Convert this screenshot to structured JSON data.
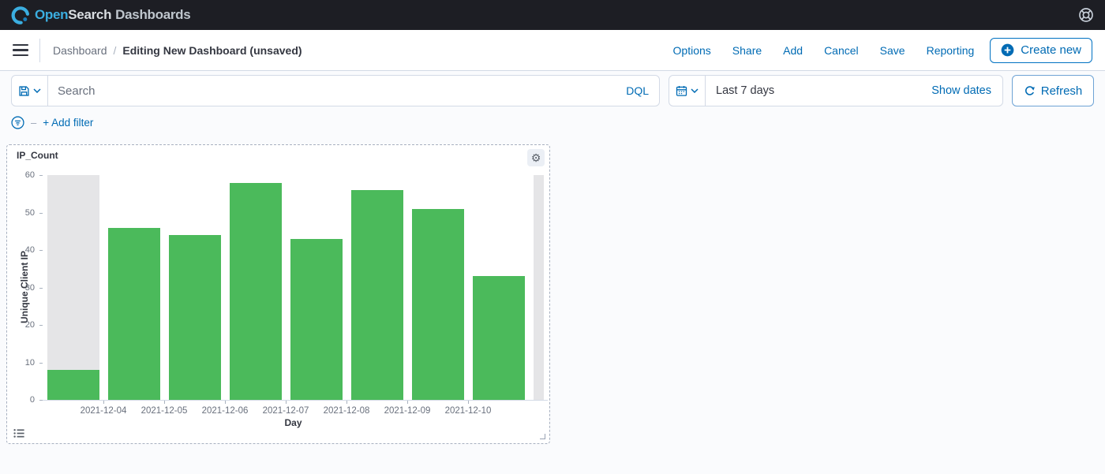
{
  "header": {
    "logo_open": "Open",
    "logo_search": "Search",
    "logo_product": "Dashboards"
  },
  "nav": {
    "breadcrumb_root": "Dashboard",
    "breadcrumb_sep": "/",
    "breadcrumb_current": "Editing New Dashboard (unsaved)",
    "actions": [
      "Options",
      "Share",
      "Add",
      "Cancel",
      "Save",
      "Reporting"
    ],
    "create_new_label": "Create new"
  },
  "query_bar": {
    "search_placeholder": "Search",
    "language_label": "DQL",
    "date_range_label": "Last 7 days",
    "show_dates_label": "Show dates",
    "refresh_label": "Refresh"
  },
  "filter_bar": {
    "dash": "–",
    "add_filter_label": "+ Add filter"
  },
  "panel": {
    "title": "IP_Count"
  },
  "icons": {
    "gear_glyph": "⚙"
  },
  "chart_data": {
    "type": "bar",
    "title": "IP_Count",
    "xlabel": "Day",
    "ylabel": "Unique Client IP",
    "ylim": [
      0,
      60
    ],
    "yticks": [
      0,
      10,
      20,
      30,
      40,
      50,
      60
    ],
    "grid": false,
    "legend_position": "none",
    "bar_color": "#4BBA5B",
    "partial_bucket_color": "#E5E5E7",
    "bars": [
      {
        "label": "",
        "value": 8,
        "partial_backdrop": true
      },
      {
        "label": "2021-12-04",
        "value": 46,
        "partial_backdrop": false
      },
      {
        "label": "2021-12-05",
        "value": 44,
        "partial_backdrop": false
      },
      {
        "label": "2021-12-06",
        "value": 58,
        "partial_backdrop": false
      },
      {
        "label": "2021-12-07",
        "value": 43,
        "partial_backdrop": false
      },
      {
        "label": "2021-12-08",
        "value": 56,
        "partial_backdrop": false
      },
      {
        "label": "2021-12-09",
        "value": 51,
        "partial_backdrop": false
      },
      {
        "label": "2021-12-10",
        "value": 33,
        "partial_backdrop": false
      }
    ],
    "right_edge_partial_bucket": {
      "full_height": true
    }
  },
  "colors": {
    "accent_blue": "#006BB4",
    "header_bg": "#1D1E24",
    "text_dark": "#343741",
    "text_gray": "#69707D",
    "border": "#D3DAE6",
    "page_bg": "#FAFBFD"
  }
}
